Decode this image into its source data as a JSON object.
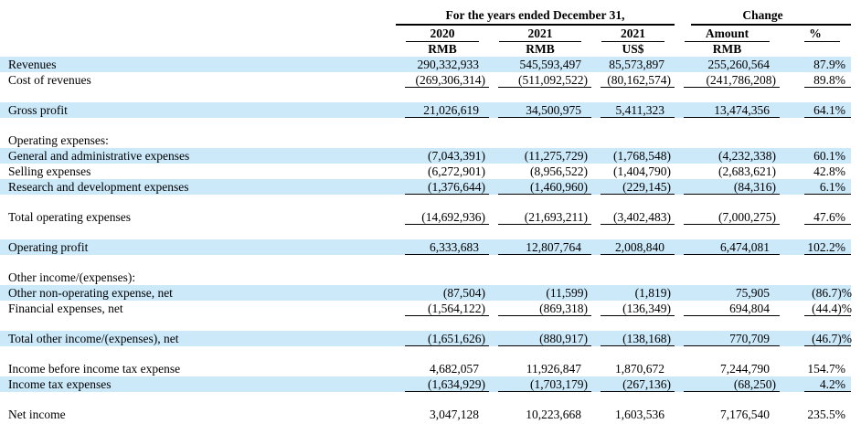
{
  "colors": {
    "shade": "#cce9fa",
    "line": "#000000",
    "text": "#000000",
    "background": "#ffffff"
  },
  "header": {
    "years_group": "For the years ended December 31,",
    "change_group": "Change",
    "cols": [
      {
        "title": "2020",
        "unit": "RMB"
      },
      {
        "title": "2021",
        "unit": "RMB"
      },
      {
        "title": "2021",
        "unit": "US$"
      },
      {
        "title": "Amount",
        "unit": "RMB"
      },
      {
        "title": "%",
        "unit": ""
      }
    ]
  },
  "rows": [
    {
      "label": "Revenues",
      "shaded": true,
      "bold": false,
      "underline": false,
      "values": [
        "290,332,933",
        "545,593,497",
        "85,573,897",
        "255,260,564",
        "87.9%"
      ]
    },
    {
      "label": "Cost of revenues",
      "shaded": false,
      "bold": false,
      "underline": true,
      "values": [
        "(269,306,314)",
        "(511,092,522)",
        "(80,162,574)",
        "(241,786,208)",
        "89.8%"
      ]
    },
    {
      "spacer": true
    },
    {
      "label": "Gross profit",
      "shaded": true,
      "bold": true,
      "underline": true,
      "values": [
        "21,026,619",
        "34,500,975",
        "5,411,323",
        "13,474,356",
        "64.1%"
      ]
    },
    {
      "spacer": true
    },
    {
      "label": "Operating expenses:",
      "shaded": false,
      "bold": true,
      "underline": false,
      "values": [
        "",
        "",
        "",
        "",
        ""
      ]
    },
    {
      "label": "General and administrative expenses",
      "shaded": true,
      "bold": false,
      "underline": false,
      "values": [
        "(7,043,391)",
        "(11,275,729)",
        "(1,768,548)",
        "(4,232,338)",
        "60.1%"
      ]
    },
    {
      "label": "Selling expenses",
      "shaded": false,
      "bold": false,
      "underline": false,
      "values": [
        "(6,272,901)",
        "(8,956,522)",
        "(1,404,790)",
        "(2,683,621)",
        "42.8%"
      ]
    },
    {
      "label": "Research and development expenses",
      "shaded": true,
      "bold": false,
      "underline": true,
      "values": [
        "(1,376,644)",
        "(1,460,960)",
        "(229,145)",
        "(84,316)",
        "6.1%"
      ]
    },
    {
      "spacer": true
    },
    {
      "label": "Total operating expenses",
      "shaded": false,
      "bold": true,
      "underline": true,
      "values": [
        "(14,692,936)",
        "(21,693,211)",
        "(3,402,483)",
        "(7,000,275)",
        "47.6%"
      ]
    },
    {
      "spacer": true
    },
    {
      "label": "Operating profit",
      "shaded": true,
      "bold": true,
      "underline": true,
      "values": [
        "6,333,683",
        "12,807,764",
        "2,008,840",
        "6,474,081",
        "102.2%"
      ]
    },
    {
      "spacer": true
    },
    {
      "label": "Other income/(expenses):",
      "shaded": false,
      "bold": true,
      "underline": false,
      "values": [
        "",
        "",
        "",
        "",
        ""
      ]
    },
    {
      "label": "Other non-operating expense, net",
      "shaded": true,
      "bold": false,
      "underline": false,
      "values": [
        "(87,504)",
        "(11,599)",
        "(1,819)",
        "75,905",
        "(86.7)%"
      ]
    },
    {
      "label": "Financial expenses, net",
      "shaded": false,
      "bold": false,
      "underline": true,
      "values": [
        "(1,564,122)",
        "(869,318)",
        "(136,349)",
        "694,804",
        "(44.4)%"
      ]
    },
    {
      "spacer": true
    },
    {
      "label": "Total other income/(expenses), net",
      "shaded": true,
      "bold": true,
      "underline": true,
      "values": [
        "(1,651,626)",
        "(880,917)",
        "(138,168)",
        "770,709",
        "(46.7)%"
      ]
    },
    {
      "spacer": true
    },
    {
      "label": "Income before income tax expense",
      "shaded": false,
      "bold": true,
      "underline": false,
      "values": [
        "4,682,057",
        "11,926,847",
        "1,870,672",
        "7,244,790",
        "154.7%"
      ]
    },
    {
      "label": "Income tax expenses",
      "shaded": true,
      "bold": false,
      "underline": true,
      "values": [
        "(1,634,929)",
        "(1,703,179)",
        "(267,136)",
        "(68,250)",
        "4.2%"
      ]
    },
    {
      "spacer": true
    },
    {
      "label": "Net income",
      "shaded": false,
      "bold": true,
      "underline": false,
      "values": [
        "3,047,128",
        "10,223,668",
        "1,603,536",
        "7,176,540",
        "235.5%"
      ]
    }
  ]
}
